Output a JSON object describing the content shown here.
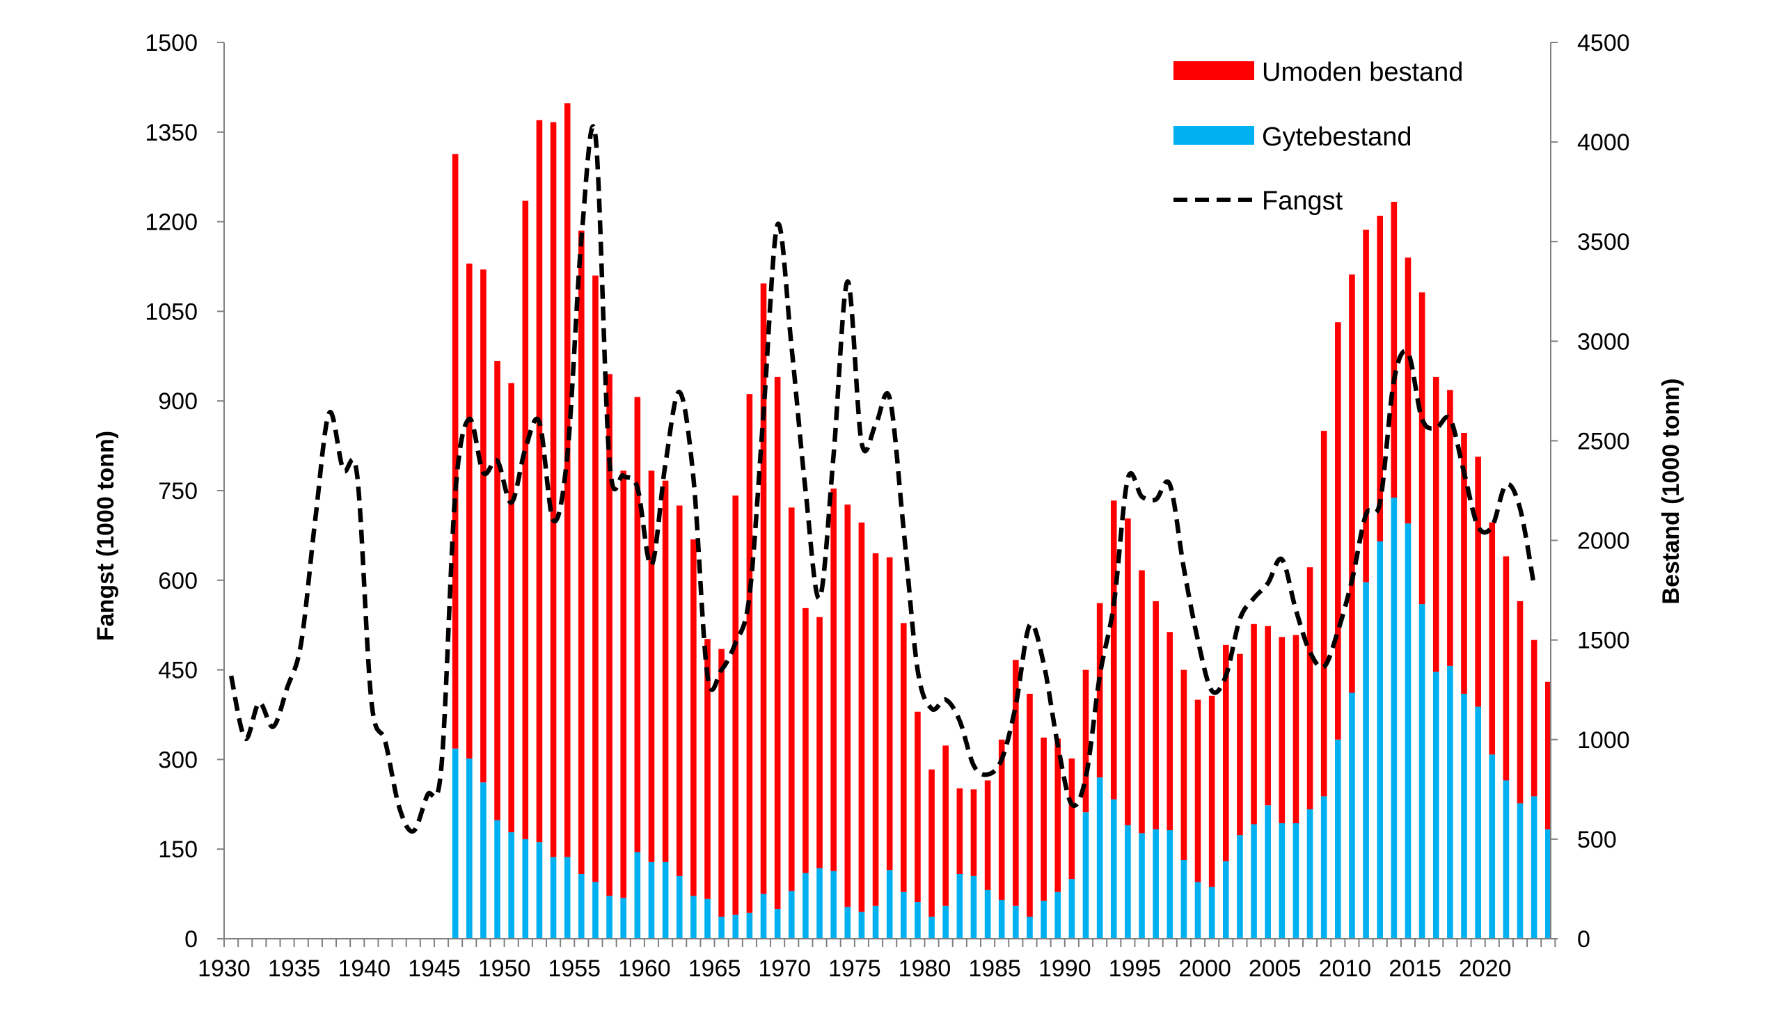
{
  "colors": {
    "umoden": "#ff0000",
    "gyte": "#00b0f0",
    "fangst": "#000000",
    "axis": "#808080"
  },
  "chart_data": {
    "type": "bar",
    "stacked": true,
    "xlabel": "",
    "ylabel_left": "Fangst (1000 tonn)",
    "ylabel_right": "Bestand (1000 tonn)",
    "ylim_left": [
      0,
      1500
    ],
    "ylim_right": [
      0,
      4500
    ],
    "yticks_left": [
      "0",
      "150",
      "300",
      "450",
      "600",
      "750",
      "900",
      "1050",
      "1200",
      "1350",
      "1500"
    ],
    "yticks_right": [
      "0",
      "500",
      "1000",
      "1500",
      "2000",
      "2500",
      "3000",
      "3500",
      "4000",
      "4500"
    ],
    "xlim": [
      1930,
      2024
    ],
    "xticks": [
      "1930",
      "1935",
      "1940",
      "1945",
      "1950",
      "1955",
      "1960",
      "1965",
      "1970",
      "1975",
      "1980",
      "1985",
      "1990",
      "1995",
      "2000",
      "2005",
      "2010",
      "2015",
      "2020"
    ],
    "legend": {
      "placement": "top-right",
      "entries": [
        "Umoden bestand",
        "Gytebestand",
        "Fangst"
      ]
    },
    "bars": {
      "axis": "right",
      "years": [
        1946,
        1947,
        1948,
        1949,
        1950,
        1951,
        1952,
        1953,
        1954,
        1955,
        1956,
        1957,
        1958,
        1959,
        1960,
        1961,
        1962,
        1963,
        1964,
        1965,
        1966,
        1967,
        1968,
        1969,
        1970,
        1971,
        1972,
        1973,
        1974,
        1975,
        1976,
        1977,
        1978,
        1979,
        1980,
        1981,
        1982,
        1983,
        1984,
        1985,
        1986,
        1987,
        1988,
        1989,
        1990,
        1991,
        1992,
        1993,
        1994,
        1995,
        1996,
        1997,
        1998,
        1999,
        2000,
        2001,
        2002,
        2003,
        2004,
        2005,
        2006,
        2007,
        2008,
        2009,
        2010,
        2011,
        2012,
        2013,
        2014,
        2015,
        2016,
        2017,
        2018,
        2019,
        2020,
        2021,
        2022,
        2023,
        2024
      ],
      "series": [
        {
          "name": "Gytebestand",
          "values": [
            955,
            905,
            785,
            595,
            535,
            500,
            485,
            410,
            410,
            325,
            285,
            215,
            205,
            435,
            385,
            385,
            315,
            215,
            200,
            110,
            120,
            130,
            225,
            150,
            240,
            330,
            355,
            340,
            160,
            135,
            165,
            345,
            235,
            185,
            110,
            165,
            325,
            315,
            245,
            195,
            165,
            110,
            190,
            235,
            300,
            635,
            810,
            700,
            570,
            530,
            550,
            545,
            395,
            285,
            260,
            390,
            520,
            575,
            670,
            580,
            580,
            650,
            715,
            1000,
            1235,
            1790,
            1995,
            2215,
            2085,
            1680,
            1340,
            1370,
            1230,
            1165,
            925,
            795,
            680,
            715,
            550
          ]
        },
        {
          "name": "Umoden bestand",
          "values": [
            2985,
            2485,
            2575,
            2305,
            2255,
            3205,
            3625,
            3690,
            3785,
            3230,
            3045,
            2620,
            2145,
            2285,
            1965,
            1915,
            1860,
            1790,
            1305,
            1345,
            2105,
            2605,
            3065,
            2670,
            1925,
            1330,
            1260,
            1920,
            2020,
            1955,
            1770,
            1570,
            1350,
            955,
            740,
            805,
            430,
            435,
            550,
            805,
            1235,
            1120,
            820,
            770,
            605,
            715,
            875,
            1500,
            1540,
            1320,
            1145,
            995,
            955,
            915,
            960,
            1085,
            910,
            1005,
            900,
            935,
            945,
            1215,
            1835,
            2095,
            2100,
            1770,
            1635,
            1485,
            1335,
            1565,
            1480,
            1385,
            1310,
            1255,
            1165,
            1125,
            1015,
            785,
            740
          ]
        }
      ]
    },
    "line": {
      "name": "Fangst",
      "axis": "left",
      "years": [
        1930,
        1931,
        1932,
        1933,
        1934,
        1935,
        1936,
        1937,
        1938,
        1939,
        1940,
        1941,
        1942,
        1943,
        1944,
        1945,
        1946,
        1947,
        1948,
        1949,
        1950,
        1951,
        1952,
        1953,
        1954,
        1955,
        1956,
        1957,
        1958,
        1959,
        1960,
        1961,
        1962,
        1963,
        1964,
        1965,
        1966,
        1967,
        1968,
        1969,
        1970,
        1971,
        1972,
        1973,
        1974,
        1975,
        1976,
        1977,
        1978,
        1979,
        1980,
        1981,
        1982,
        1983,
        1984,
        1985,
        1986,
        1987,
        1988,
        1989,
        1990,
        1991,
        1992,
        1993,
        1994,
        1995,
        1996,
        1997,
        1998,
        1999,
        2000,
        2001,
        2002,
        2003,
        2004,
        2005,
        2006,
        2007,
        2008,
        2009,
        2010,
        2011,
        2012,
        2013,
        2014,
        2015,
        2016,
        2017,
        2018,
        2019,
        2020,
        2021,
        2022,
        2023
      ],
      "values": [
        440,
        335,
        395,
        355,
        420,
        495,
        700,
        880,
        785,
        775,
        400,
        330,
        220,
        180,
        240,
        285,
        745,
        870,
        780,
        800,
        730,
        820,
        865,
        700,
        810,
        1170,
        1345,
        800,
        775,
        755,
        625,
        795,
        915,
        770,
        440,
        450,
        495,
        575,
        880,
        1195,
        990,
        750,
        570,
        810,
        1100,
        830,
        860,
        905,
        685,
        450,
        385,
        400,
        365,
        290,
        275,
        300,
        390,
        525,
        460,
        325,
        225,
        270,
        440,
        560,
        770,
        740,
        735,
        760,
        620,
        500,
        415,
        440,
        535,
        570,
        595,
        635,
        550,
        480,
        455,
        515,
        600,
        710,
        730,
        935,
        980,
        870,
        855,
        870,
        780,
        690,
        690,
        760,
        720,
        590
      ]
    }
  }
}
